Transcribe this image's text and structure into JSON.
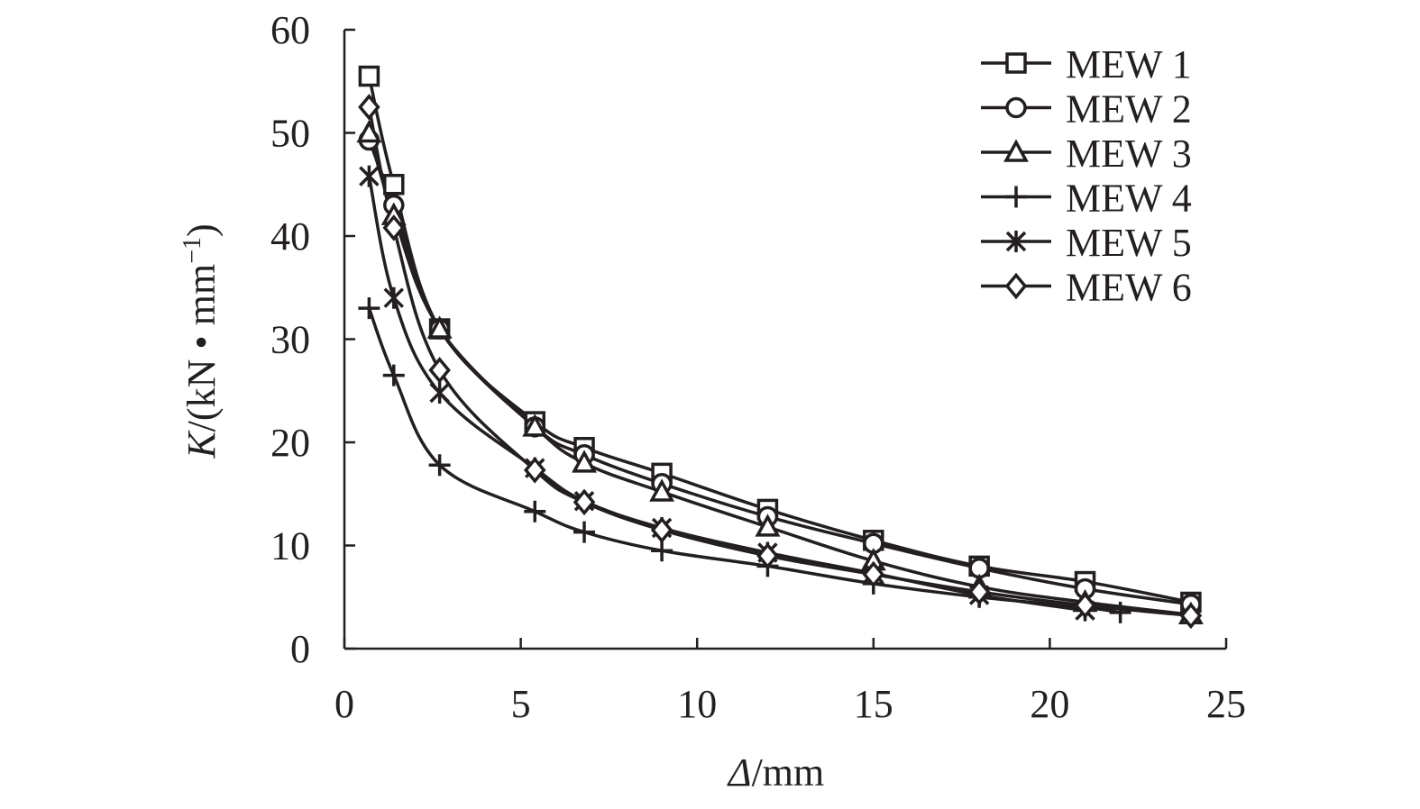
{
  "chart_data": {
    "type": "line",
    "xlabel_symbol": "Δ",
    "xlabel_unit": "/mm",
    "ylabel_symbol": "K",
    "ylabel_unit": "/(kN • mm",
    "ylabel_sup": "−1",
    "ylabel_close": ")",
    "xlim": [
      0,
      25
    ],
    "ylim": [
      0,
      60
    ],
    "xticks": [
      0,
      5,
      10,
      15,
      20,
      25
    ],
    "yticks": [
      0,
      10,
      20,
      30,
      40,
      50,
      60
    ],
    "legend_position": "top-right",
    "grid": false,
    "series": [
      {
        "name": "MEW 1",
        "marker": "square",
        "x": [
          0.7,
          1.4,
          2.7,
          5.4,
          6.8,
          9.0,
          12.0,
          15.0,
          18.0,
          21.0,
          24.0
        ],
        "y": [
          55.5,
          45.0,
          31.0,
          22.0,
          19.5,
          17.0,
          13.5,
          10.5,
          8.0,
          6.5,
          4.5
        ]
      },
      {
        "name": "MEW 2",
        "marker": "circle",
        "x": [
          0.7,
          1.4,
          2.7,
          5.4,
          6.8,
          9.0,
          12.0,
          15.0,
          18.0,
          21.0,
          24.0
        ],
        "y": [
          49.3,
          43.0,
          31.0,
          21.5,
          18.8,
          16.0,
          12.8,
          10.2,
          7.8,
          5.8,
          4.3
        ]
      },
      {
        "name": "MEW 3",
        "marker": "triangle",
        "x": [
          0.7,
          1.4,
          2.7,
          5.4,
          6.8,
          9.0,
          12.0,
          15.0,
          18.0,
          21.0,
          24.0
        ],
        "y": [
          50.0,
          42.0,
          31.0,
          21.5,
          18.0,
          15.2,
          11.8,
          8.5,
          6.0,
          4.5,
          3.3
        ]
      },
      {
        "name": "MEW 4",
        "marker": "plus",
        "x": [
          0.7,
          1.4,
          2.7,
          5.4,
          6.8,
          9.0,
          12.0,
          15.0,
          18.0,
          21.0,
          22.0
        ],
        "y": [
          33.0,
          26.5,
          17.8,
          13.3,
          11.3,
          9.5,
          8.0,
          6.3,
          5.0,
          4.0,
          3.5
        ]
      },
      {
        "name": "MEW 5",
        "marker": "asterisk",
        "x": [
          0.7,
          1.4,
          2.7,
          5.4,
          6.8,
          9.0,
          12.0,
          15.0,
          18.0,
          21.0
        ],
        "y": [
          45.8,
          34.0,
          24.8,
          17.5,
          14.3,
          11.7,
          9.3,
          7.3,
          5.2,
          3.7
        ]
      },
      {
        "name": "MEW 6",
        "marker": "diamond",
        "x": [
          0.7,
          1.4,
          2.7,
          5.4,
          6.8,
          9.0,
          12.0,
          15.0,
          18.0,
          21.0,
          24.0
        ],
        "y": [
          52.5,
          40.8,
          27.0,
          17.3,
          14.2,
          11.5,
          9.0,
          7.2,
          5.5,
          4.2,
          3.2
        ]
      }
    ]
  }
}
